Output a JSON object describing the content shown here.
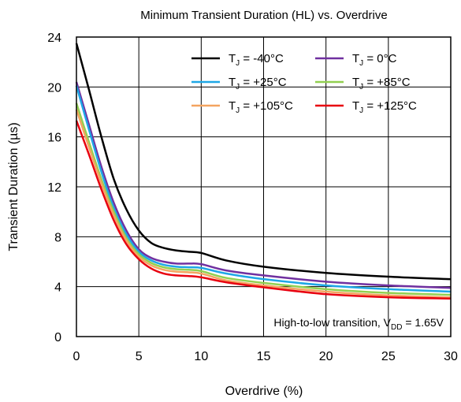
{
  "chart_data": {
    "type": "line",
    "title": "Minimum Transient Duration (HL) vs. Overdrive",
    "xlabel": "Overdrive (%)",
    "ylabel": "Transient Duration (µs)",
    "xlim": [
      0,
      30
    ],
    "ylim": [
      0,
      24
    ],
    "xticks": [
      0,
      5,
      10,
      15,
      20,
      25,
      30
    ],
    "yticks": [
      0,
      4,
      8,
      12,
      16,
      20,
      24
    ],
    "grid": true,
    "legend_position": "top-right",
    "annotation": {
      "prefix": "High-to-low transition, V",
      "subscript": "DD",
      "suffix": " = 1.65V"
    },
    "x": [
      0,
      1,
      2,
      3,
      4,
      5,
      6,
      7,
      8,
      9,
      10,
      12,
      15,
      20,
      25,
      30
    ],
    "series": [
      {
        "tj": "-40°C",
        "color": "#000000",
        "values": [
          23.5,
          19.8,
          16.0,
          12.6,
          10.2,
          8.5,
          7.5,
          7.1,
          6.9,
          6.8,
          6.7,
          6.1,
          5.6,
          5.1,
          4.8,
          4.6
        ]
      },
      {
        "tj": "0°C",
        "color": "#7030a0",
        "values": [
          20.4,
          17.0,
          13.6,
          10.7,
          8.5,
          7.0,
          6.3,
          6.0,
          5.85,
          5.85,
          5.8,
          5.3,
          4.9,
          4.4,
          4.1,
          3.9
        ]
      },
      {
        "tj": "+25°C",
        "color": "#1ea7e6",
        "values": [
          20.1,
          16.6,
          13.2,
          10.3,
          8.2,
          6.8,
          6.1,
          5.75,
          5.6,
          5.55,
          5.5,
          5.05,
          4.6,
          4.1,
          3.8,
          3.6
        ]
      },
      {
        "tj": "+85°C",
        "color": "#92d050",
        "values": [
          18.7,
          15.6,
          12.6,
          10.0,
          7.9,
          6.6,
          5.9,
          5.55,
          5.4,
          5.35,
          5.25,
          4.7,
          4.3,
          3.8,
          3.5,
          3.35
        ]
      },
      {
        "tj": "+105°C",
        "color": "#f4a460",
        "values": [
          18.2,
          15.2,
          12.3,
          9.7,
          7.7,
          6.4,
          5.7,
          5.35,
          5.2,
          5.15,
          5.05,
          4.5,
          4.1,
          3.6,
          3.3,
          3.15
        ]
      },
      {
        "tj": "+125°C",
        "color": "#e8000f",
        "values": [
          17.3,
          14.6,
          11.8,
          9.3,
          7.4,
          6.2,
          5.45,
          5.05,
          4.9,
          4.85,
          4.75,
          4.35,
          3.95,
          3.4,
          3.15,
          3.05
        ]
      }
    ]
  }
}
